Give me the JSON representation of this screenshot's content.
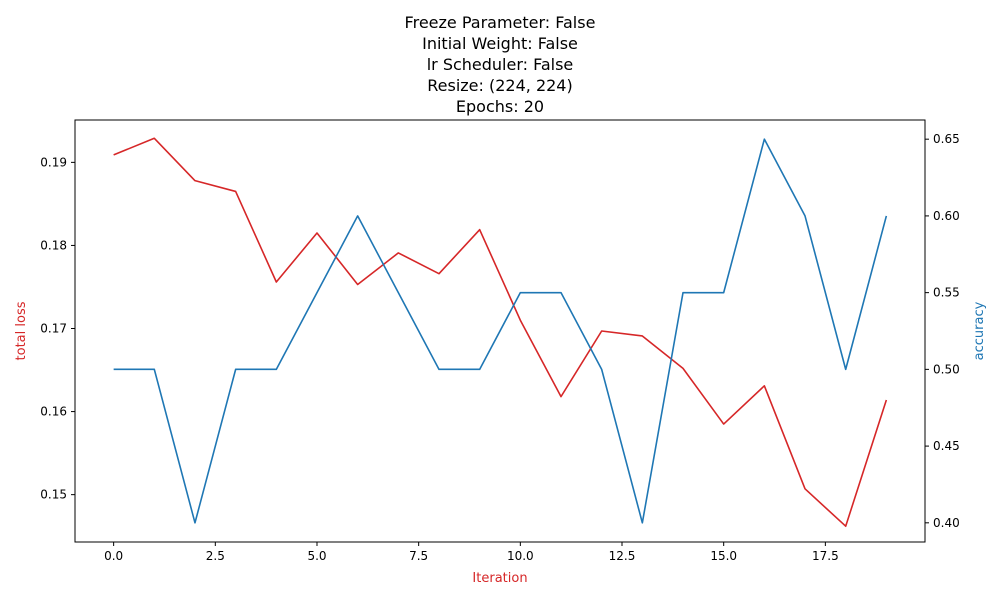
{
  "chart_data": {
    "type": "line",
    "title_lines": [
      "Freeze Parameter: False",
      "Initial Weight: False",
      "lr Scheduler: False",
      "Resize: (224, 224)",
      "Epochs: 20"
    ],
    "xlabel": "Iteration",
    "ylabel_left": "total loss",
    "ylabel_right": "accuracy",
    "x": [
      0,
      1,
      2,
      3,
      4,
      5,
      6,
      7,
      8,
      9,
      10,
      11,
      12,
      13,
      14,
      15,
      16,
      17,
      18,
      19
    ],
    "xlim": [
      -0.95,
      19.95
    ],
    "ylim_left": [
      0.1443,
      0.1951
    ],
    "ylim_right": [
      0.3875,
      0.6625
    ],
    "x_ticks": [
      0.0,
      2.5,
      5.0,
      7.5,
      10.0,
      12.5,
      15.0,
      17.5
    ],
    "x_tick_labels": [
      "0.0",
      "2.5",
      "5.0",
      "7.5",
      "10.0",
      "12.5",
      "15.0",
      "17.5"
    ],
    "y_left_ticks": [
      0.15,
      0.16,
      0.17,
      0.18,
      0.19
    ],
    "y_left_tick_labels": [
      "0.15",
      "0.16",
      "0.17",
      "0.18",
      "0.19"
    ],
    "y_right_ticks": [
      0.4,
      0.45,
      0.5,
      0.55,
      0.6,
      0.65
    ],
    "y_right_tick_labels": [
      "0.40",
      "0.45",
      "0.50",
      "0.55",
      "0.60",
      "0.65"
    ],
    "series": [
      {
        "name": "total loss",
        "axis": "left",
        "color": "#d62728",
        "values": [
          0.1909,
          0.1929,
          0.1878,
          0.1865,
          0.1756,
          0.1815,
          0.1753,
          0.1791,
          0.1766,
          0.1819,
          0.171,
          0.1618,
          0.1697,
          0.1691,
          0.1652,
          0.1585,
          0.1631,
          0.1507,
          0.1462,
          0.1614
        ]
      },
      {
        "name": "accuracy",
        "axis": "right",
        "color": "#1f77b4",
        "values": [
          0.5,
          0.5,
          0.4,
          0.5,
          0.5,
          0.55,
          0.6,
          0.55,
          0.5,
          0.5,
          0.55,
          0.55,
          0.5,
          0.4,
          0.55,
          0.55,
          0.65,
          0.6,
          0.5,
          0.6
        ]
      }
    ],
    "xlabel_color": "#d62728",
    "ylabel_left_color": "#d62728",
    "ylabel_right_color": "#1f77b4",
    "grid": false
  }
}
